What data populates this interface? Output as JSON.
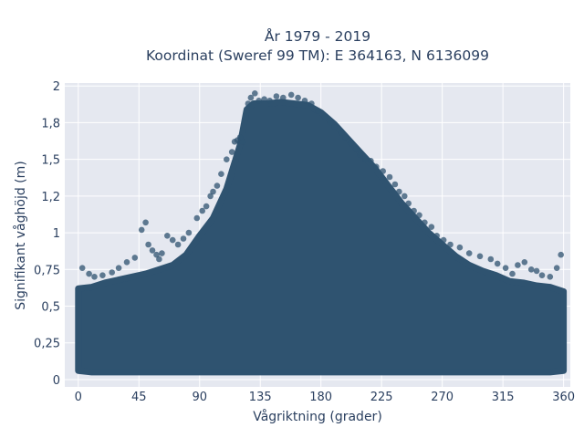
{
  "chart_data": {
    "type": "scatter",
    "title_line1": "År 1979 - 2019",
    "title_line2": "Koordinat (Sweref 99 TM): E 364163, N 6136099",
    "xlabel": "Vågriktning (grader)",
    "ylabel": "Signifikant våghöjd (m)",
    "xlim": [
      -10,
      365
    ],
    "ylim": [
      -0.05,
      2.02
    ],
    "xticks": [
      0,
      45,
      90,
      135,
      180,
      225,
      270,
      315,
      360
    ],
    "xtick_labels": [
      "0",
      "45",
      "90",
      "135",
      "180",
      "225",
      "270",
      "315",
      "360"
    ],
    "yticks": [
      0,
      0.25,
      0.5,
      0.75,
      1,
      1.25,
      1.5,
      1.75,
      2
    ],
    "ytick_labels": [
      "0",
      "0,25",
      "0,5",
      "0,75",
      "1",
      "1,2",
      "1,5",
      "1,8",
      "2"
    ],
    "grid": true,
    "marker_color": "#2f5370",
    "plot_bg": "#e5e8f0",
    "envelope": {
      "direction_deg": [
        0,
        10,
        20,
        30,
        40,
        50,
        60,
        70,
        80,
        90,
        100,
        110,
        120,
        125,
        130,
        140,
        150,
        160,
        170,
        180,
        190,
        200,
        210,
        220,
        230,
        240,
        250,
        260,
        270,
        280,
        290,
        300,
        310,
        320,
        330,
        340,
        350,
        360
      ],
      "min_height_m": [
        0.06,
        0.05,
        0.05,
        0.05,
        0.05,
        0.05,
        0.05,
        0.05,
        0.05,
        0.05,
        0.05,
        0.05,
        0.05,
        0.05,
        0.05,
        0.05,
        0.05,
        0.05,
        0.05,
        0.05,
        0.05,
        0.05,
        0.05,
        0.05,
        0.05,
        0.05,
        0.05,
        0.05,
        0.05,
        0.05,
        0.05,
        0.05,
        0.05,
        0.05,
        0.05,
        0.05,
        0.05,
        0.06
      ],
      "max_height_m": [
        0.62,
        0.63,
        0.66,
        0.68,
        0.7,
        0.72,
        0.75,
        0.78,
        0.85,
        0.98,
        1.1,
        1.3,
        1.6,
        1.84,
        1.88,
        1.88,
        1.89,
        1.88,
        1.87,
        1.82,
        1.74,
        1.64,
        1.54,
        1.44,
        1.32,
        1.2,
        1.1,
        1.0,
        0.92,
        0.84,
        0.78,
        0.74,
        0.71,
        0.67,
        0.66,
        0.64,
        0.63,
        0.6
      ]
    },
    "points": [
      [
        3,
        0.76
      ],
      [
        8,
        0.72
      ],
      [
        12,
        0.7
      ],
      [
        18,
        0.71
      ],
      [
        25,
        0.73
      ],
      [
        30,
        0.76
      ],
      [
        36,
        0.8
      ],
      [
        42,
        0.83
      ],
      [
        47,
        1.02
      ],
      [
        50,
        1.07
      ],
      [
        52,
        0.92
      ],
      [
        55,
        0.88
      ],
      [
        58,
        0.85
      ],
      [
        60,
        0.82
      ],
      [
        62,
        0.86
      ],
      [
        66,
        0.98
      ],
      [
        70,
        0.95
      ],
      [
        74,
        0.92
      ],
      [
        78,
        0.96
      ],
      [
        82,
        1.0
      ],
      [
        88,
        1.1
      ],
      [
        92,
        1.15
      ],
      [
        95,
        1.18
      ],
      [
        98,
        1.25
      ],
      [
        100,
        1.28
      ],
      [
        103,
        1.32
      ],
      [
        106,
        1.4
      ],
      [
        110,
        1.5
      ],
      [
        114,
        1.55
      ],
      [
        116,
        1.62
      ],
      [
        118,
        1.63
      ],
      [
        120,
        1.65
      ],
      [
        122,
        1.62
      ],
      [
        126,
        1.88
      ],
      [
        128,
        1.92
      ],
      [
        131,
        1.95
      ],
      [
        134,
        1.9
      ],
      [
        138,
        1.91
      ],
      [
        142,
        1.9
      ],
      [
        147,
        1.93
      ],
      [
        152,
        1.92
      ],
      [
        158,
        1.94
      ],
      [
        163,
        1.92
      ],
      [
        168,
        1.9
      ],
      [
        173,
        1.88
      ],
      [
        178,
        1.83
      ],
      [
        183,
        1.79
      ],
      [
        187,
        1.75
      ],
      [
        190,
        1.72
      ],
      [
        195,
        1.68
      ],
      [
        198,
        1.65
      ],
      [
        202,
        1.61
      ],
      [
        206,
        1.57
      ],
      [
        209,
        1.53
      ],
      [
        213,
        1.5
      ],
      [
        217,
        1.49
      ],
      [
        221,
        1.45
      ],
      [
        226,
        1.42
      ],
      [
        231,
        1.38
      ],
      [
        235,
        1.33
      ],
      [
        238,
        1.28
      ],
      [
        242,
        1.25
      ],
      [
        245,
        1.2
      ],
      [
        249,
        1.15
      ],
      [
        253,
        1.12
      ],
      [
        257,
        1.07
      ],
      [
        262,
        1.04
      ],
      [
        266,
        0.98
      ],
      [
        271,
        0.95
      ],
      [
        276,
        0.92
      ],
      [
        283,
        0.9
      ],
      [
        290,
        0.86
      ],
      [
        298,
        0.84
      ],
      [
        306,
        0.82
      ],
      [
        311,
        0.79
      ],
      [
        317,
        0.76
      ],
      [
        322,
        0.72
      ],
      [
        326,
        0.78
      ],
      [
        331,
        0.8
      ],
      [
        336,
        0.75
      ],
      [
        340,
        0.74
      ],
      [
        344,
        0.71
      ],
      [
        350,
        0.7
      ],
      [
        355,
        0.76
      ],
      [
        358,
        0.85
      ]
    ]
  }
}
